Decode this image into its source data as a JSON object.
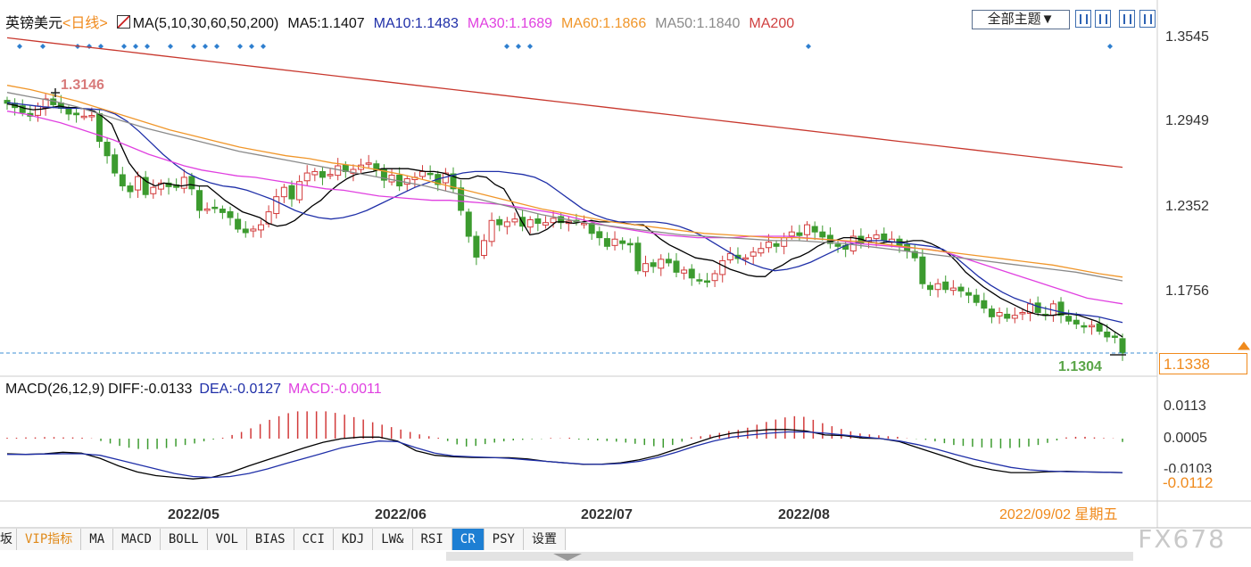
{
  "header": {
    "symbol": "英镑美元",
    "period": "<日线>",
    "ma_label": "MA(5,10,30,60,50,200)",
    "ma5": "MA5:1.1407",
    "ma10": "MA10:1.1483",
    "ma30": "MA30:1.1689",
    "ma60": "MA60:1.1866",
    "ma50": "MA50:1.1840",
    "ma200": "MA200"
  },
  "toolbar": {
    "theme_button": "全部主题▼",
    "icons": [
      "crosshair-icon",
      "candle-icon",
      "play-icon",
      "fast-forward-icon"
    ]
  },
  "price_axis": [
    "1.3545",
    "1.2949",
    "1.2352",
    "1.1756"
  ],
  "current_price": "1.1338",
  "annotations": {
    "high_label": "1.3146",
    "low_label": "1.1304"
  },
  "macd": {
    "label": "MACD(26,12,9)",
    "diff": "DIFF:-0.0133",
    "dea": "DEA:-0.0127",
    "macd": "MACD:-0.0011",
    "axis": [
      "0.0113",
      "0.0005",
      "-0.0103"
    ],
    "current": "-0.0112"
  },
  "dates": [
    "2022/05",
    "2022/06",
    "2022/07",
    "2022/08",
    "2022/09/02 星期五"
  ],
  "tabs": [
    "坂",
    "VIP指标",
    "MA",
    "MACD",
    "BOLL",
    "VOL",
    "BIAS",
    "CCI",
    "KDJ",
    "LW&",
    "RSI",
    "CR",
    "PSY",
    "设置"
  ],
  "active_tab": "CR",
  "watermark": "FX678",
  "colors": {
    "up": "#d23a3a",
    "down": "#3c9b2f",
    "ma5": "#000000",
    "ma10": "#1f2fa8",
    "ma30": "#e040e0",
    "ma60": "#f0962a",
    "ma50": "#8a8a8a",
    "ma200": "#c8382e",
    "accent": "#f08a1c"
  },
  "chart_data": [
    {
      "type": "candlestick",
      "title": "英镑美元 日线",
      "ylim": [
        1.1304,
        1.3545
      ],
      "y_ticks": [
        1.3545,
        1.2949,
        1.2352,
        1.1756
      ],
      "x_ticks": [
        "2022/05",
        "2022/06",
        "2022/07",
        "2022/08"
      ],
      "close": [
        1.3075,
        1.3045,
        1.301,
        1.2985,
        1.3055,
        1.3105,
        1.3065,
        1.304,
        1.3,
        1.2995,
        1.2985,
        1.299,
        1.281,
        1.271,
        1.259,
        1.25,
        1.246,
        1.2565,
        1.244,
        1.249,
        1.252,
        1.2495,
        1.249,
        1.256,
        1.248,
        1.233,
        1.234,
        1.2345,
        1.2315,
        1.228,
        1.22,
        1.2175,
        1.22,
        1.223,
        1.232,
        1.2425,
        1.249,
        1.241,
        1.253,
        1.259,
        1.26,
        1.256,
        1.258,
        1.264,
        1.26,
        1.2615,
        1.2645,
        1.266,
        1.261,
        1.254,
        1.2575,
        1.25,
        1.255,
        1.256,
        1.26,
        1.258,
        1.251,
        1.259,
        1.248,
        1.233,
        1.215,
        1.2005,
        1.212,
        1.226,
        1.223,
        1.225,
        1.227,
        1.222,
        1.2265,
        1.224,
        1.2245,
        1.2275,
        1.2245,
        1.2255,
        1.225,
        1.224,
        1.217,
        1.214,
        1.208,
        1.213,
        1.21,
        1.209,
        1.191,
        1.196,
        1.194,
        1.199,
        1.1965,
        1.19,
        1.1915,
        1.186,
        1.184,
        1.183,
        1.189,
        1.198,
        1.203,
        1.1995,
        1.2,
        1.204,
        1.2065,
        1.211,
        1.208,
        1.214,
        1.218,
        1.2155,
        1.223,
        1.218,
        1.2145,
        1.21,
        1.208,
        1.206,
        1.215,
        1.21,
        1.214,
        1.216,
        1.212,
        1.213,
        1.208,
        1.205,
        1.2,
        1.182,
        1.178,
        1.182,
        1.178,
        1.179,
        1.177,
        1.174,
        1.169,
        1.165,
        1.159,
        1.162,
        1.158,
        1.16,
        1.162,
        1.168,
        1.162,
        1.16,
        1.168,
        1.16,
        1.156,
        1.154,
        1.152,
        1.153,
        1.149,
        1.145,
        1.145,
        1.1338
      ],
      "indicator_lines": {
        "MA5": [
          1.307,
          1.306,
          1.304,
          1.303,
          1.3035,
          1.3045,
          1.3055,
          1.3045,
          1.3045,
          1.3035,
          1.302,
          1.298,
          1.293,
          1.279,
          1.266,
          1.258,
          1.253,
          1.25,
          1.252,
          1.251,
          1.25,
          1.251,
          1.25,
          1.25,
          1.245,
          1.24,
          1.236,
          1.232,
          1.23,
          1.228,
          1.224,
          1.222,
          1.223,
          1.226,
          1.231,
          1.236,
          1.24,
          1.246,
          1.251,
          1.255,
          1.258,
          1.259,
          1.26,
          1.262,
          1.262,
          1.262,
          1.262,
          1.261,
          1.26,
          1.26,
          1.259,
          1.257,
          1.255,
          1.255,
          1.257,
          1.256,
          1.251,
          1.248,
          1.238,
          1.226,
          1.216,
          1.217,
          1.22,
          1.225,
          1.225,
          1.224,
          1.225,
          1.226,
          1.225,
          1.225,
          1.225,
          1.224,
          1.223,
          1.223,
          1.218,
          1.213,
          1.209,
          1.206,
          1.203,
          1.2,
          1.199,
          1.198,
          1.195,
          1.192,
          1.19,
          1.188,
          1.187,
          1.187,
          1.192,
          1.195,
          1.199,
          1.201,
          1.204,
          1.208,
          1.211,
          1.212,
          1.214,
          1.214,
          1.213,
          1.211,
          1.21,
          1.211,
          1.211,
          1.211,
          1.212,
          1.212,
          1.21,
          1.207,
          1.203,
          1.197,
          1.19,
          1.185,
          1.18,
          1.176,
          1.172,
          1.169,
          1.166,
          1.163,
          1.161,
          1.16,
          1.16,
          1.161,
          1.161,
          1.16,
          1.158,
          1.156,
          1.153,
          1.149,
          1.145
        ],
        "MA10": [
          1.308,
          1.307,
          1.306,
          1.305,
          1.3045,
          1.304,
          1.304,
          1.3035,
          1.303,
          1.3,
          1.295,
          1.288,
          1.28,
          1.272,
          1.265,
          1.259,
          1.255,
          1.252,
          1.25,
          1.249,
          1.247,
          1.244,
          1.241,
          1.237,
          1.233,
          1.23,
          1.228,
          1.227,
          1.228,
          1.23,
          1.233,
          1.237,
          1.241,
          1.245,
          1.249,
          1.252,
          1.255,
          1.257,
          1.259,
          1.26,
          1.26,
          1.26,
          1.259,
          1.258,
          1.256,
          1.252,
          1.246,
          1.24,
          1.234,
          1.23,
          1.227,
          1.225,
          1.225,
          1.225,
          1.225,
          1.224,
          1.222,
          1.219,
          1.215,
          1.21,
          1.205,
          1.2,
          1.196,
          1.193,
          1.191,
          1.192,
          1.194,
          1.197,
          1.201,
          1.205,
          1.209,
          1.211,
          1.212,
          1.212,
          1.211,
          1.21,
          1.209,
          1.208,
          1.206,
          1.201,
          1.194,
          1.187,
          1.181,
          1.176,
          1.172,
          1.169,
          1.166,
          1.164,
          1.162,
          1.161,
          1.16,
          1.159,
          1.157,
          1.155
        ],
        "MA30": [
          1.302,
          1.3,
          1.297,
          1.294,
          1.29,
          1.286,
          1.282,
          1.277,
          1.272,
          1.268,
          1.264,
          1.261,
          1.259,
          1.257,
          1.256,
          1.254,
          1.252,
          1.25,
          1.248,
          1.247,
          1.245,
          1.243,
          1.242,
          1.241,
          1.24,
          1.24,
          1.239,
          1.238,
          1.237,
          1.235,
          1.233,
          1.231,
          1.228,
          1.225,
          1.222,
          1.22,
          1.218,
          1.216,
          1.215,
          1.214,
          1.214,
          1.214,
          1.215,
          1.215,
          1.215,
          1.214,
          1.213,
          1.212,
          1.21,
          1.209,
          1.208,
          1.207,
          1.206,
          1.204,
          1.2,
          1.196,
          1.192,
          1.188,
          1.184,
          1.18,
          1.176,
          1.172,
          1.17,
          1.168
        ],
        "MA60": [
          1.32,
          1.317,
          1.313,
          1.309,
          1.304,
          1.299,
          1.294,
          1.289,
          1.285,
          1.281,
          1.277,
          1.274,
          1.271,
          1.269,
          1.266,
          1.264,
          1.261,
          1.258,
          1.254,
          1.25,
          1.246,
          1.242,
          1.238,
          1.234,
          1.231,
          1.228,
          1.225,
          1.223,
          1.221,
          1.219,
          1.217,
          1.216,
          1.215,
          1.214,
          1.214,
          1.213,
          1.212,
          1.211,
          1.209,
          1.207,
          1.205,
          1.203,
          1.201,
          1.199,
          1.197,
          1.195,
          1.192,
          1.189,
          1.1866
        ],
        "MA50": [
          1.315,
          1.312,
          1.309,
          1.305,
          1.3,
          1.295,
          1.29,
          1.286,
          1.282,
          1.278,
          1.274,
          1.271,
          1.268,
          1.265,
          1.262,
          1.259,
          1.256,
          1.253,
          1.25,
          1.246,
          1.242,
          1.238,
          1.234,
          1.23,
          1.227,
          1.224,
          1.222,
          1.22,
          1.218,
          1.216,
          1.215,
          1.214,
          1.213,
          1.212,
          1.212,
          1.211,
          1.21,
          1.208,
          1.206,
          1.204,
          1.202,
          1.2,
          1.198,
          1.196,
          1.194,
          1.192,
          1.19,
          1.187,
          1.184
        ],
        "MA200": [
          1.353,
          1.35,
          1.347,
          1.344,
          1.341,
          1.338,
          1.335,
          1.332,
          1.329,
          1.326,
          1.323,
          1.32,
          1.317,
          1.314,
          1.311,
          1.308,
          1.305,
          1.302,
          1.299,
          1.296,
          1.293,
          1.29,
          1.287,
          1.284,
          1.281,
          1.278,
          1.275,
          1.272,
          1.269,
          1.266,
          1.263
        ]
      }
    },
    {
      "type": "bar",
      "title": "MACD(26,12,9)",
      "ylim": [
        -0.014,
        0.0113
      ],
      "y_ticks": [
        0.0113,
        0.0005,
        -0.0103
      ],
      "values": [
        0.0003,
        0.0003,
        0.0004,
        0.0004,
        0.0005,
        0.0005,
        0.0004,
        0.0004,
        0.0003,
        0.0001,
        -0.0008,
        -0.0016,
        -0.0024,
        -0.003,
        -0.0034,
        -0.0035,
        -0.0034,
        -0.0031,
        -0.0026,
        -0.0021,
        -0.0016,
        -0.0009,
        -0.0003,
        0.0003,
        0.0012,
        0.0022,
        0.0034,
        0.0048,
        0.0062,
        0.0074,
        0.0084,
        0.009,
        0.009,
        0.009,
        0.009,
        0.0085,
        0.0079,
        0.0071,
        0.0063,
        0.0054,
        0.0046,
        0.0038,
        0.003,
        0.0022,
        0.0014,
        0.0008,
        0.0003,
        -0.0008,
        -0.0019,
        -0.0026,
        -0.0024,
        -0.0018,
        -0.0013,
        -0.0009,
        -0.0006,
        -0.0004,
        -0.0002,
        -0.0001,
        0.0002,
        0.0001,
        0.0003,
        -0.0003,
        -0.0004,
        -0.0006,
        -0.0008,
        -0.001,
        -0.0013,
        -0.0017,
        -0.0021,
        -0.0025,
        -0.003,
        -0.0021,
        -0.001,
        0.0004,
        0.0008,
        0.0013,
        0.0019,
        0.0025,
        0.0029,
        0.0036,
        0.0046,
        0.0055,
        0.0063,
        0.007,
        0.0074,
        0.0072,
        0.0062,
        0.0051,
        0.0041,
        0.0032,
        0.0024,
        0.0017,
        0.0014,
        0.0011,
        0.0008,
        0.0006,
        0.0001,
        -0.0001,
        -0.0004,
        -0.0009,
        -0.0015,
        -0.0021,
        -0.0024,
        -0.0027,
        -0.0029,
        -0.003,
        -0.0032,
        -0.0031,
        -0.0029,
        -0.0026,
        -0.0021,
        -0.0014,
        -0.0006,
        0.0004,
        0.0006,
        0.0006,
        0.0004,
        0.0002,
        0.0001,
        -0.0011
      ],
      "series": [
        {
          "name": "DIFF",
          "values": [
            -0.005,
            -0.0052,
            -0.005,
            -0.0045,
            -0.0048,
            -0.0065,
            -0.009,
            -0.011,
            -0.0122,
            -0.0128,
            -0.0133,
            -0.0128,
            -0.0112,
            -0.009,
            -0.007,
            -0.005,
            -0.003,
            -0.0012,
            0.0,
            0.0005,
            0.0005,
            -0.0008,
            -0.004,
            -0.0055,
            -0.006,
            -0.0062,
            -0.0063,
            -0.0063,
            -0.0067,
            -0.0075,
            -0.008,
            -0.0085,
            -0.0084,
            -0.008,
            -0.007,
            -0.0055,
            -0.0035,
            -0.0015,
            0.0005,
            0.0018,
            0.0025,
            0.003,
            0.003,
            0.0025,
            0.0012,
            0.001,
            0.0002,
            0.0,
            -0.001,
            -0.003,
            -0.005,
            -0.007,
            -0.009,
            -0.0103,
            -0.0112,
            -0.0112,
            -0.0109,
            -0.0108,
            -0.011,
            -0.0111,
            -0.0112
          ]
        },
        {
          "name": "DEA",
          "values": [
            -0.0052,
            -0.0052,
            -0.0051,
            -0.005,
            -0.005,
            -0.0055,
            -0.007,
            -0.0085,
            -0.01,
            -0.0115,
            -0.0125,
            -0.0128,
            -0.0125,
            -0.0115,
            -0.01,
            -0.0082,
            -0.0065,
            -0.0048,
            -0.003,
            -0.0018,
            -0.0008,
            -0.001,
            -0.003,
            -0.0048,
            -0.0057,
            -0.006,
            -0.0062,
            -0.0065,
            -0.007,
            -0.0075,
            -0.008,
            -0.0084,
            -0.0085,
            -0.0082,
            -0.0075,
            -0.0062,
            -0.0045,
            -0.0025,
            -0.0008,
            0.0005,
            0.0012,
            0.0018,
            0.0022,
            0.0022,
            0.0018,
            0.0012,
            0.0006,
            0.0,
            -0.0008,
            -0.002,
            -0.0035,
            -0.0052,
            -0.0068,
            -0.0082,
            -0.0095,
            -0.0103,
            -0.0107,
            -0.0109,
            -0.011,
            -0.0111,
            -0.0112
          ]
        }
      ]
    }
  ]
}
